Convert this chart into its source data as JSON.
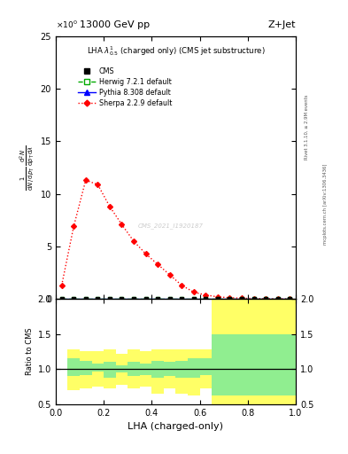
{
  "title_left": "13000 GeV pp",
  "title_right": "Z+Jet",
  "plot_title": "LHA $\\lambda^{1}_{0.5}$ (charged only) (CMS jet substructure)",
  "watermark": "CMS_2021_I1920187",
  "ylim_main": [
    0,
    25
  ],
  "ylim_ratio": [
    0.5,
    2.0
  ],
  "xlim": [
    0.0,
    1.0
  ],
  "sherpa_x": [
    0.025,
    0.075,
    0.125,
    0.175,
    0.225,
    0.275,
    0.325,
    0.375,
    0.425,
    0.475,
    0.525,
    0.575,
    0.625,
    0.675,
    0.725,
    0.775,
    0.825,
    0.875,
    0.925,
    0.975
  ],
  "sherpa_y": [
    1.3,
    6.9,
    11.3,
    10.9,
    8.8,
    7.1,
    5.5,
    4.3,
    3.3,
    2.3,
    1.3,
    0.65,
    0.38,
    0.2,
    0.12,
    0.07,
    0.05,
    0.03,
    0.02,
    0.01
  ],
  "cms_x": [
    0.025,
    0.075,
    0.125,
    0.175,
    0.225,
    0.275,
    0.325,
    0.375,
    0.425,
    0.475,
    0.525,
    0.575,
    0.625,
    0.675,
    0.725,
    0.775,
    0.825,
    0.875,
    0.925,
    0.975
  ],
  "cms_y": [
    0.0,
    0.0,
    0.0,
    0.0,
    0.0,
    0.0,
    0.0,
    0.0,
    0.0,
    0.0,
    0.0,
    0.0,
    0.0,
    0.0,
    0.0,
    0.0,
    0.0,
    0.0,
    0.0,
    0.0
  ],
  "herwig_x": [
    0.025,
    0.075,
    0.125,
    0.175,
    0.225,
    0.275,
    0.325,
    0.375,
    0.425,
    0.475,
    0.525,
    0.575,
    0.625,
    0.675,
    0.725,
    0.775,
    0.825,
    0.875,
    0.925,
    0.975
  ],
  "herwig_y": [
    0.0,
    0.0,
    0.0,
    0.0,
    0.0,
    0.0,
    0.0,
    0.0,
    0.0,
    0.0,
    0.0,
    0.0,
    0.0,
    0.0,
    0.0,
    0.0,
    0.0,
    0.0,
    0.0,
    0.0
  ],
  "pythia_x": [
    0.025,
    0.075,
    0.125,
    0.175,
    0.225,
    0.275,
    0.325,
    0.375,
    0.425,
    0.475,
    0.525,
    0.575,
    0.625,
    0.675,
    0.725,
    0.775,
    0.825,
    0.875,
    0.925,
    0.975
  ],
  "pythia_y": [
    0.0,
    0.0,
    0.0,
    0.0,
    0.0,
    0.0,
    0.0,
    0.0,
    0.0,
    0.0,
    0.0,
    0.0,
    0.0,
    0.0,
    0.0,
    0.0,
    0.0,
    0.0,
    0.0,
    0.0
  ],
  "ratio_x_edges": [
    0.0,
    0.05,
    0.1,
    0.15,
    0.2,
    0.25,
    0.3,
    0.35,
    0.4,
    0.45,
    0.5,
    0.55,
    0.6,
    0.65,
    1.0
  ],
  "ratio_green_lo": [
    1.0,
    0.9,
    0.92,
    0.97,
    0.88,
    0.95,
    0.9,
    0.92,
    0.88,
    0.9,
    0.88,
    0.88,
    0.92,
    0.62,
    0.62
  ],
  "ratio_green_hi": [
    1.0,
    1.15,
    1.12,
    1.08,
    1.1,
    1.05,
    1.1,
    1.08,
    1.12,
    1.1,
    1.12,
    1.15,
    1.15,
    1.5,
    1.5
  ],
  "ratio_yellow_lo": [
    1.0,
    0.7,
    0.72,
    0.75,
    0.72,
    0.78,
    0.72,
    0.75,
    0.65,
    0.72,
    0.65,
    0.62,
    0.72,
    0.42,
    0.42
  ],
  "ratio_yellow_hi": [
    1.0,
    1.28,
    1.25,
    1.25,
    1.28,
    1.22,
    1.28,
    1.25,
    1.28,
    1.28,
    1.28,
    1.28,
    1.28,
    2.0,
    2.0
  ],
  "right_label1": "Rivet 3.1.10, ≥ 2.9M events",
  "right_label2": "mcplots.cern.ch [arXiv:1306.3436]"
}
